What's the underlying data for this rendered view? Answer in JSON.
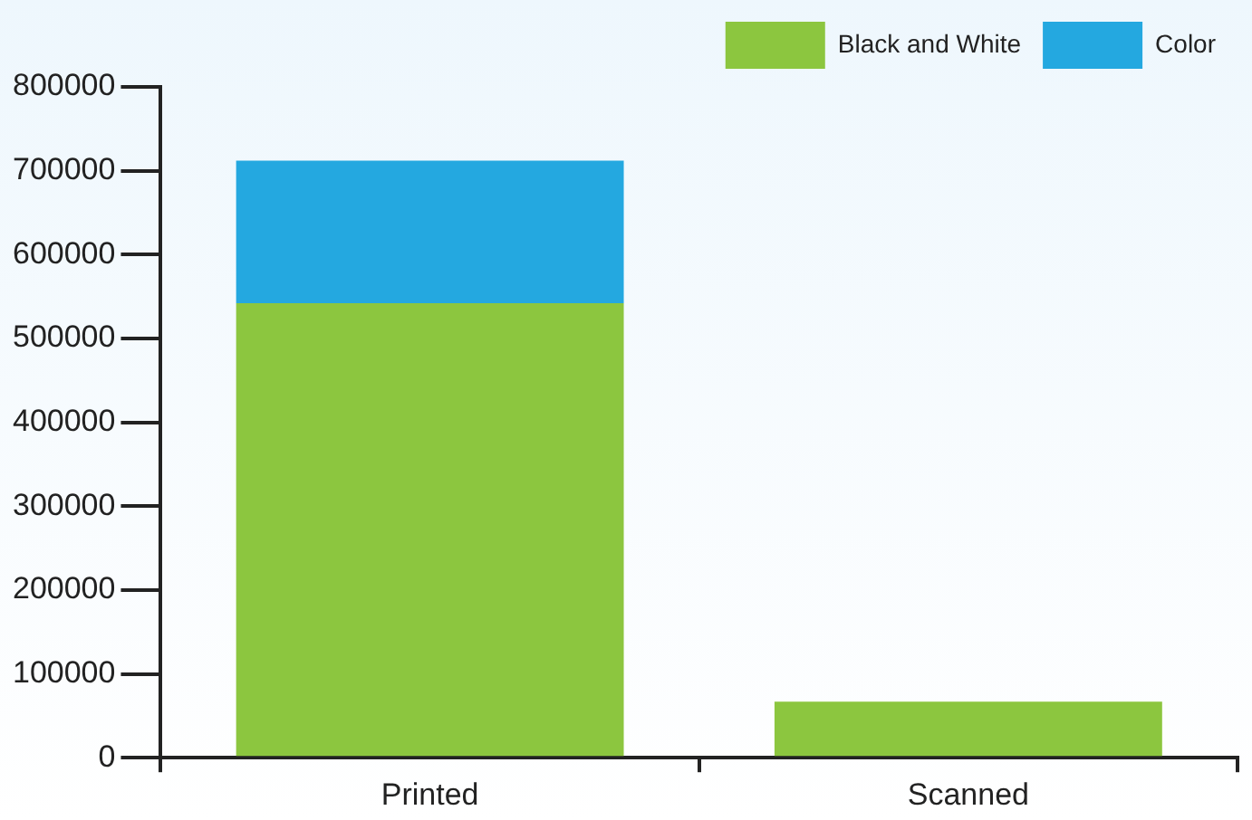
{
  "chart_data": {
    "type": "bar",
    "stacked": true,
    "categories": [
      "Printed",
      "Scanned"
    ],
    "series": [
      {
        "name": "Black and White",
        "color": "#8cc63f",
        "values": [
          542000,
          67000
        ]
      },
      {
        "name": "Color",
        "color": "#24a8e0",
        "values": [
          170000,
          0
        ]
      }
    ],
    "ylim": [
      0,
      800000
    ],
    "yticks": [
      0,
      100000,
      200000,
      300000,
      400000,
      500000,
      600000,
      700000,
      800000
    ],
    "grid": false,
    "legend": "top right"
  }
}
